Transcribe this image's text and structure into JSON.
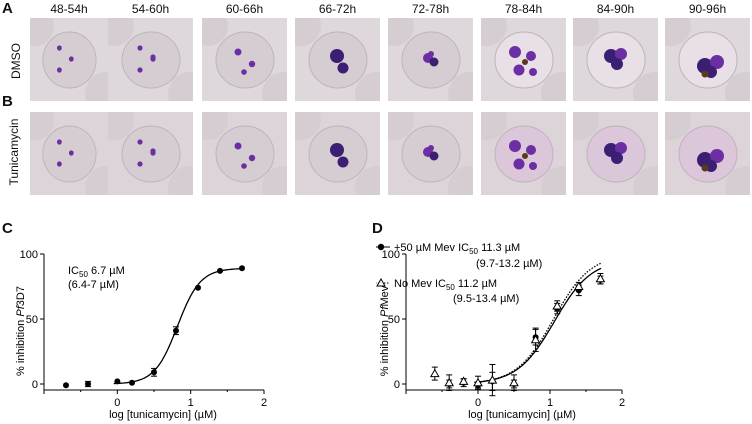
{
  "panels": {
    "a": "A",
    "b": "B",
    "c": "C",
    "d": "D"
  },
  "timepoints": [
    "48-54h",
    "54-60h",
    "60-66h",
    "66-72h",
    "72-78h",
    "78-84h",
    "84-90h",
    "90-96h"
  ],
  "row_labels": {
    "dmso": "DMSO",
    "tunicamycin": "Tunicamycin"
  },
  "colors": {
    "rbc": "#d6cdd3",
    "background_light": "#c9c6cc",
    "parasite": "#6b2fa3",
    "parasite_dark": "#3b1f73",
    "hemozoin": "#5a3a1e",
    "infected_rbc_dmso_late": "#e9dfe6",
    "infected_rbc_tun_late": "#dcc6d9"
  },
  "chart_data": [
    {
      "type": "scatter",
      "panel": "C",
      "xlabel": "log [tunicamycin] (µM)",
      "ylabel_prefix": "% inhibition ",
      "ylabel_italic": "Pf",
      "ylabel_suffix": "3D7",
      "annotation_line1_pre": "IC",
      "annotation_line1_sub": "50",
      "annotation_line1_post": " 6.7 µM",
      "annotation_line2": "(6.4-7 µM)",
      "xlim": [
        -1,
        2
      ],
      "ylim": [
        0,
        100
      ],
      "xticks": [
        0,
        1,
        2
      ],
      "yticks": [
        0,
        50,
        100
      ],
      "series": [
        {
          "marker": "filled-circle",
          "x": [
            -0.7,
            -0.4,
            0.0,
            0.2,
            0.5,
            0.8,
            1.1,
            1.4,
            1.7
          ],
          "y": [
            -1,
            0,
            2,
            1,
            9,
            41,
            74,
            87,
            89
          ],
          "err": [
            0,
            2,
            0,
            0,
            3,
            3,
            0,
            0,
            0
          ]
        }
      ],
      "fit": {
        "bottom": 0,
        "top": 89,
        "logEC50": 0.82,
        "hill": 2.8,
        "style": "solid"
      }
    },
    {
      "type": "scatter",
      "panel": "D",
      "xlabel": "log [tunicamycin] (µM)",
      "ylabel_prefix": "% inhibition ",
      "ylabel_italic": "Pf",
      "ylabel_suffix": "Mev",
      "xlim": [
        -1,
        2
      ],
      "ylim": [
        0,
        100
      ],
      "xticks": [
        0,
        1,
        2
      ],
      "yticks": [
        0,
        50,
        100
      ],
      "series": [
        {
          "legend_pre": "+50 µM Mev IC",
          "legend_sub": "50",
          "legend_post": " 11.3 µM",
          "legend_ci": "(9.7-13.2 µM)",
          "marker": "filled-circle",
          "line": "solid",
          "x": [
            -0.4,
            -0.2,
            0.0,
            0.2,
            0.5,
            0.8,
            1.1,
            1.4,
            1.7
          ],
          "y": [
            0,
            1,
            -1,
            2,
            0,
            36,
            58,
            72,
            80
          ],
          "err": [
            3,
            3,
            2,
            7,
            3,
            6,
            4,
            4,
            3
          ]
        },
        {
          "legend_pre": "No Mev IC",
          "legend_sub": "50",
          "legend_post": " 11.2 µM",
          "legend_ci": "(9.5-13.4 µM)",
          "marker": "open-triangle",
          "line": "dotted",
          "x": [
            -0.6,
            -0.4,
            -0.2,
            0.0,
            0.2,
            0.5,
            0.8,
            1.1,
            1.4,
            1.7
          ],
          "y": [
            8,
            1,
            2,
            1,
            3,
            1,
            34,
            60,
            75,
            81
          ],
          "err": [
            5,
            6,
            2,
            5,
            12,
            6,
            9,
            4,
            3,
            4
          ]
        }
      ],
      "fit": {
        "bottom": 0,
        "top": 100,
        "logEC50": 1.05,
        "hill": 1.7
      }
    }
  ]
}
